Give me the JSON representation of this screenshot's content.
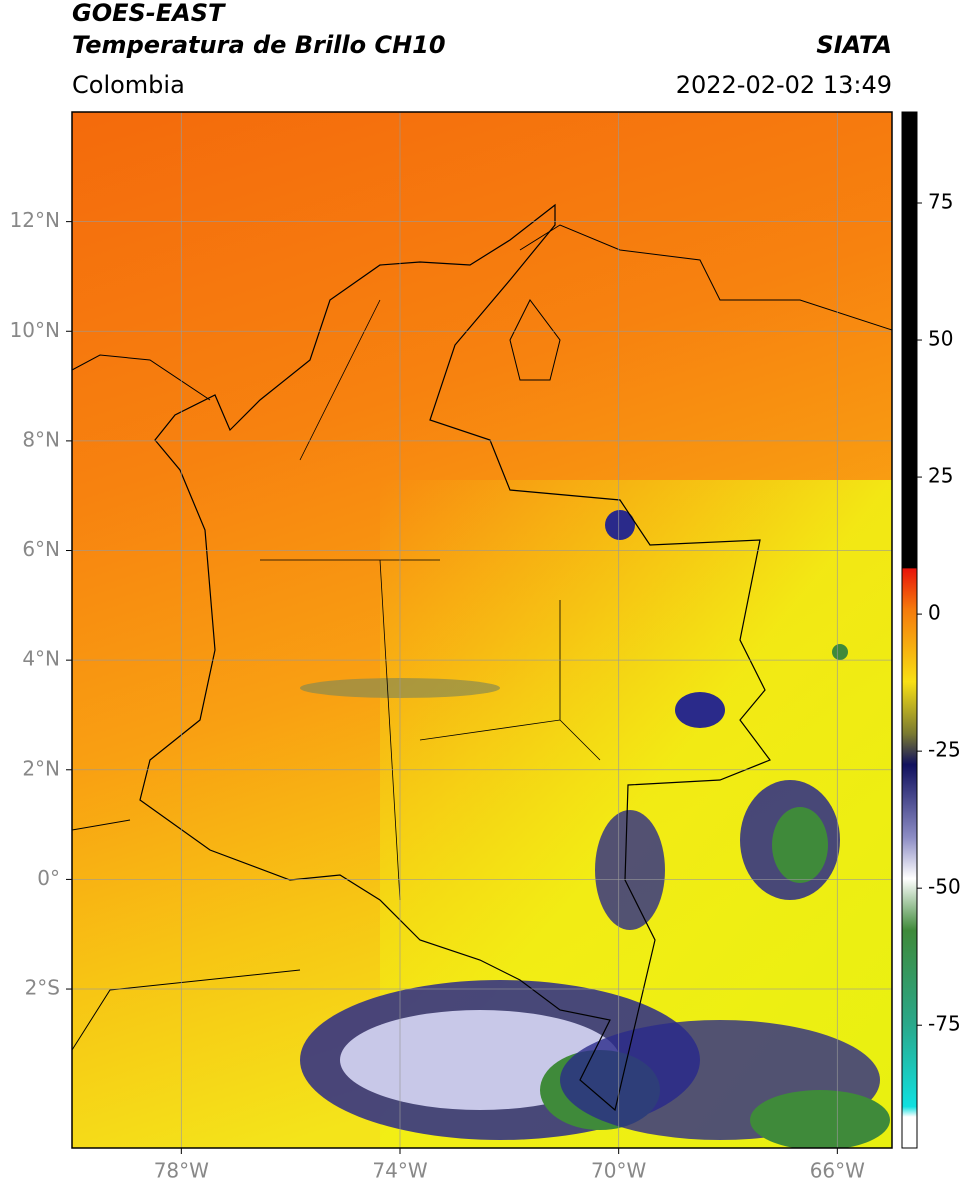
{
  "header": {
    "title": "GOES-EAST",
    "subtitle": "Temperatura de Brillo CH10",
    "region": "Colombia",
    "source": "SIATA",
    "datetime": "2022-02-02 13:49"
  },
  "map": {
    "xlim": [
      -80,
      -65
    ],
    "ylim": [
      -4.9,
      14
    ],
    "xticks": [
      {
        "value": -78,
        "label": "78°W"
      },
      {
        "value": -74,
        "label": "74°W"
      },
      {
        "value": -70,
        "label": "70°W"
      },
      {
        "value": -66,
        "label": "66°W"
      }
    ],
    "yticks": [
      {
        "value": 12,
        "label": "12°N"
      },
      {
        "value": 10,
        "label": "10°N"
      },
      {
        "value": 8,
        "label": "8°N"
      },
      {
        "value": 6,
        "label": "6°N"
      },
      {
        "value": 4,
        "label": "4°N"
      },
      {
        "value": 2,
        "label": "2°N"
      },
      {
        "value": 0,
        "label": "0°"
      },
      {
        "value": -2,
        "label": "2°S"
      }
    ],
    "grid": true
  },
  "colorbar": {
    "lim": [
      -97.4,
      91.6
    ],
    "ticks": [
      75,
      50,
      25,
      0,
      -25,
      -50,
      -75
    ]
  }
}
